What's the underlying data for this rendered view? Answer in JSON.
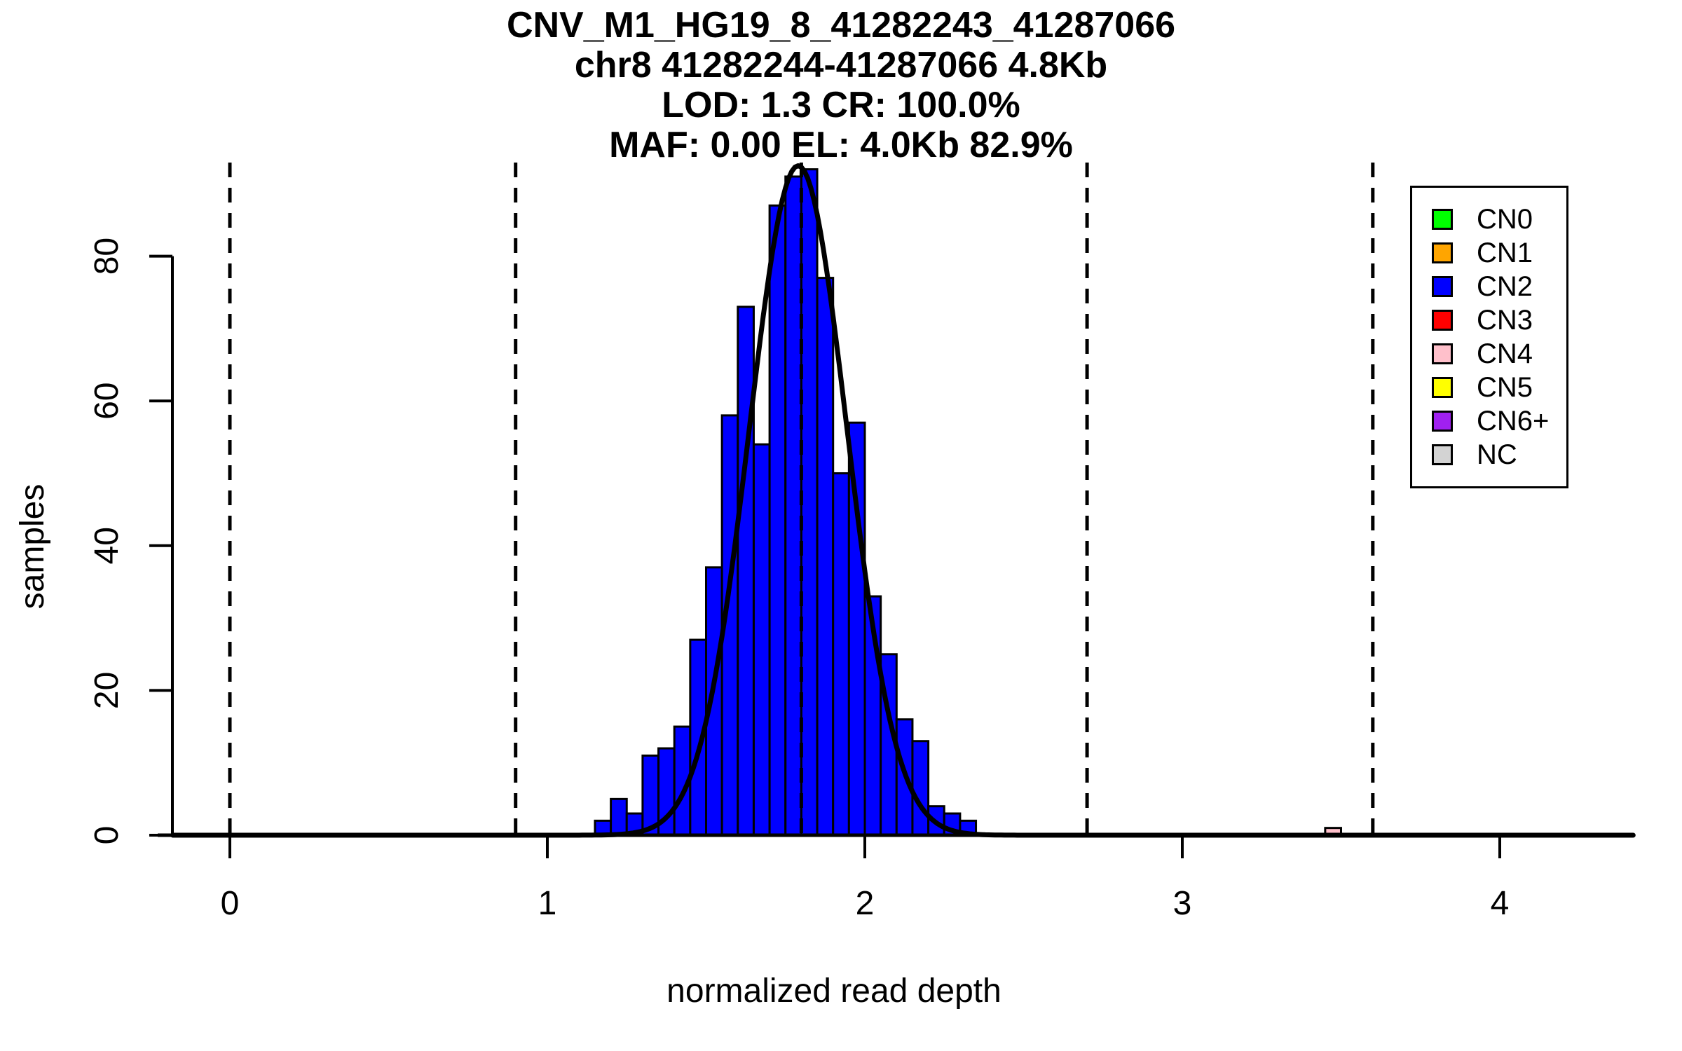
{
  "title": {
    "line1": "CNV_M1_HG19_8_41282243_41287066",
    "line2": "chr8 41282244-41287066 4.8Kb",
    "line3": "LOD: 1.3 CR: 100.0%",
    "line4": "MAF: 0.00 EL: 4.0Kb 82.9%"
  },
  "axes": {
    "x": {
      "label": "normalized read depth",
      "ticks": [
        "0",
        "1",
        "2",
        "3",
        "4"
      ],
      "tick_values": [
        0,
        1,
        2,
        3,
        4
      ]
    },
    "y": {
      "label": "samples",
      "ticks": [
        "0",
        "20",
        "40",
        "60",
        "80"
      ],
      "tick_values": [
        0,
        20,
        40,
        60,
        80
      ]
    }
  },
  "legend": {
    "items": [
      {
        "label": "CN0",
        "color": "#00FF00"
      },
      {
        "label": "CN1",
        "color": "#FFA500"
      },
      {
        "label": "CN2",
        "color": "#0000FF"
      },
      {
        "label": "CN3",
        "color": "#FF0000"
      },
      {
        "label": "CN4",
        "color": "#FFC0CB"
      },
      {
        "label": "CN5",
        "color": "#FFFF00"
      },
      {
        "label": "CN6+",
        "color": "#A020F0"
      },
      {
        "label": "NC",
        "color": "#D3D3D3"
      }
    ]
  },
  "chart_data": {
    "type": "bar",
    "subtype": "histogram",
    "title": "CNV_M1_HG19_8_41282243_41287066 | chr8 41282244-41287066 4.8Kb | LOD: 1.3 CR: 100.0% | MAF: 0.00 EL: 4.0Kb 82.9%",
    "xlabel": "normalized read depth",
    "ylabel": "samples",
    "xlim": [
      -0.23,
      4.43
    ],
    "ylim": [
      0,
      93
    ],
    "x_ticks": [
      0,
      1,
      2,
      3,
      4
    ],
    "y_ticks": [
      0,
      20,
      40,
      60,
      80
    ],
    "grid": false,
    "legend_position": "top-right",
    "histogram": {
      "series": "CN2",
      "color": "#0000FF",
      "bin_start": 1.15,
      "bin_width": 0.05,
      "bin_edges": [
        1.15,
        1.2,
        1.25,
        1.3,
        1.35,
        1.4,
        1.45,
        1.5,
        1.55,
        1.6,
        1.65,
        1.7,
        1.75,
        1.8,
        1.85,
        1.9,
        1.95,
        2.0,
        2.05,
        2.1,
        2.15,
        2.2,
        2.25,
        2.3,
        2.35
      ],
      "counts": [
        2,
        5,
        3,
        11,
        12,
        15,
        27,
        37,
        58,
        73,
        54,
        87,
        91,
        92,
        77,
        50,
        57,
        33,
        25,
        16,
        13,
        4,
        3,
        2
      ]
    },
    "extra_bars": [
      {
        "series": "CN4",
        "color": "#FFC0CB",
        "bin_start": 3.45,
        "bin_width": 0.05,
        "count": 1
      }
    ],
    "fit_curve": {
      "shape": "gaussian",
      "mean": 1.79,
      "sd": 0.154,
      "peak_height": 92.5,
      "color": "#000000"
    },
    "dashed_vlines_x": [
      0,
      0.9,
      1.8,
      2.7,
      3.6
    ]
  }
}
